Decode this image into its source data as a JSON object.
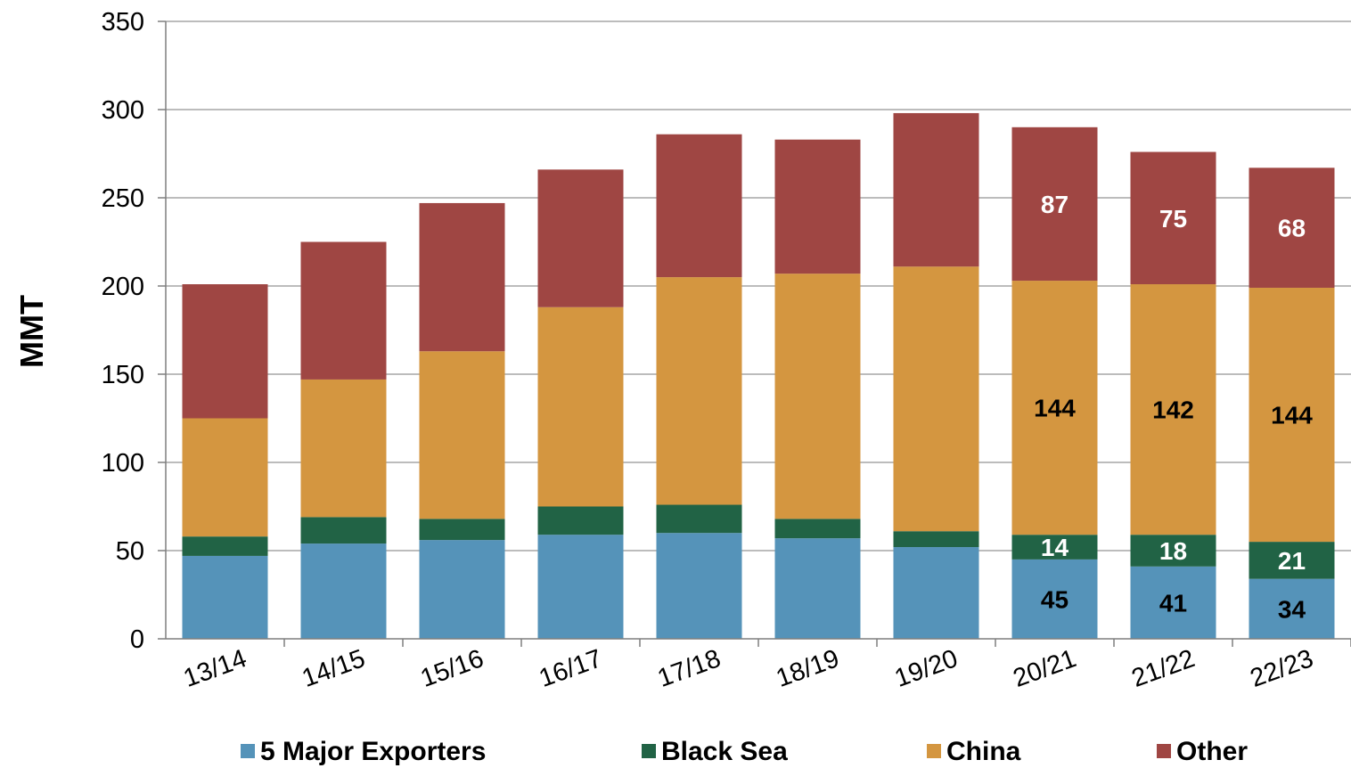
{
  "chart_data": {
    "type": "bar",
    "stacked": true,
    "ylabel": "MMT",
    "ylim": [
      0,
      350
    ],
    "yticks": [
      0,
      50,
      100,
      150,
      200,
      250,
      300,
      350
    ],
    "grid": true,
    "legend_position": "bottom",
    "categories": [
      "13/14",
      "14/15",
      "15/16",
      "16/17",
      "17/18",
      "18/19",
      "19/20",
      "20/21",
      "21/22",
      "22/23"
    ],
    "series": [
      {
        "name": "5 Major Exporters",
        "color": "#5593b9",
        "values": [
          47,
          54,
          56,
          59,
          60,
          57,
          52,
          45,
          41,
          34
        ],
        "labels": [
          null,
          null,
          null,
          null,
          null,
          null,
          null,
          "45",
          "41",
          "34"
        ],
        "label_color": "#000000"
      },
      {
        "name": "Black Sea",
        "color": "#216345",
        "values": [
          11,
          15,
          12,
          16,
          16,
          11,
          9,
          14,
          18,
          21
        ],
        "labels": [
          null,
          null,
          null,
          null,
          null,
          null,
          null,
          "14",
          "18",
          "21"
        ],
        "label_color": "#ffffff"
      },
      {
        "name": "China",
        "color": "#d49640",
        "values": [
          67,
          78,
          95,
          113,
          129,
          139,
          150,
          144,
          142,
          144
        ],
        "labels": [
          null,
          null,
          null,
          null,
          null,
          null,
          null,
          "144",
          "142",
          "144"
        ],
        "label_color": "#000000"
      },
      {
        "name": "Other",
        "color": "#9f4643",
        "values": [
          76,
          78,
          84,
          78,
          81,
          76,
          87,
          87,
          75,
          68
        ],
        "labels": [
          null,
          null,
          null,
          null,
          null,
          null,
          null,
          "87",
          "75",
          "68"
        ],
        "label_color": "#ffffff"
      }
    ]
  }
}
